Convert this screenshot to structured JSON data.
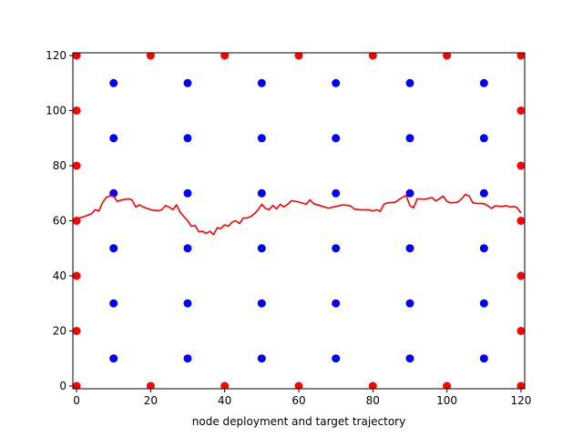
{
  "chart_data": {
    "type": "scatter",
    "title": "",
    "xlabel": "node deployment and target trajectory",
    "ylabel": "",
    "xlim": [
      -1,
      121
    ],
    "ylim": [
      -1,
      121
    ],
    "xticks": [
      0,
      20,
      40,
      60,
      80,
      100,
      120
    ],
    "yticks": [
      0,
      20,
      40,
      60,
      80,
      100,
      120
    ],
    "grid": false,
    "series": [
      {
        "kind": "scatter",
        "color": "#ff0000",
        "points": [
          [
            0,
            0
          ],
          [
            20,
            0
          ],
          [
            40,
            0
          ],
          [
            60,
            0
          ],
          [
            80,
            0
          ],
          [
            100,
            0
          ],
          [
            120,
            0
          ],
          [
            0,
            20
          ],
          [
            0,
            40
          ],
          [
            0,
            60
          ],
          [
            0,
            80
          ],
          [
            0,
            100
          ],
          [
            0,
            120
          ],
          [
            20,
            120
          ],
          [
            40,
            120
          ],
          [
            60,
            120
          ],
          [
            80,
            120
          ],
          [
            100,
            120
          ],
          [
            120,
            120
          ],
          [
            120,
            20
          ],
          [
            120,
            40
          ],
          [
            120,
            60
          ],
          [
            120,
            80
          ],
          [
            120,
            100
          ]
        ]
      },
      {
        "kind": "scatter",
        "color": "#0000ff",
        "points": [
          [
            10,
            10
          ],
          [
            30,
            10
          ],
          [
            50,
            10
          ],
          [
            70,
            10
          ],
          [
            90,
            10
          ],
          [
            110,
            10
          ],
          [
            10,
            30
          ],
          [
            30,
            30
          ],
          [
            50,
            30
          ],
          [
            70,
            30
          ],
          [
            90,
            30
          ],
          [
            110,
            30
          ],
          [
            10,
            50
          ],
          [
            30,
            50
          ],
          [
            50,
            50
          ],
          [
            70,
            50
          ],
          [
            90,
            50
          ],
          [
            110,
            50
          ],
          [
            10,
            70
          ],
          [
            30,
            70
          ],
          [
            50,
            70
          ],
          [
            70,
            70
          ],
          [
            90,
            70
          ],
          [
            110,
            70
          ],
          [
            10,
            90
          ],
          [
            30,
            90
          ],
          [
            50,
            90
          ],
          [
            70,
            90
          ],
          [
            90,
            90
          ],
          [
            110,
            90
          ],
          [
            10,
            110
          ],
          [
            30,
            110
          ],
          [
            50,
            110
          ],
          [
            70,
            110
          ],
          [
            90,
            110
          ],
          [
            110,
            110
          ]
        ]
      },
      {
        "kind": "line",
        "color": "#ff0000",
        "points": [
          [
            0,
            60.8
          ],
          [
            2,
            61.5
          ],
          [
            4,
            62.5
          ],
          [
            5,
            64
          ],
          [
            6,
            63.5
          ],
          [
            7,
            66.5
          ],
          [
            8,
            68.5
          ],
          [
            9,
            69
          ],
          [
            10,
            69
          ],
          [
            11,
            67
          ],
          [
            12,
            67.5
          ],
          [
            14,
            68
          ],
          [
            15,
            67.5
          ],
          [
            16,
            65
          ],
          [
            17,
            65.8
          ],
          [
            18,
            65
          ],
          [
            20,
            64
          ],
          [
            22,
            63.6
          ],
          [
            23,
            64
          ],
          [
            24,
            65.5
          ],
          [
            25,
            65
          ],
          [
            26,
            64
          ],
          [
            27,
            65.8
          ],
          [
            28,
            63
          ],
          [
            29,
            61.5
          ],
          [
            30,
            60
          ],
          [
            31,
            58
          ],
          [
            32,
            58.3
          ],
          [
            33,
            56
          ],
          [
            34,
            56.2
          ],
          [
            35,
            55.4
          ],
          [
            36,
            56.2
          ],
          [
            37,
            55
          ],
          [
            38,
            57.5
          ],
          [
            39,
            57.2
          ],
          [
            40,
            58.5
          ],
          [
            41,
            58
          ],
          [
            42,
            59.5
          ],
          [
            43,
            60
          ],
          [
            44,
            59
          ],
          [
            45,
            61
          ],
          [
            46,
            61
          ],
          [
            47,
            61.5
          ],
          [
            48,
            62.5
          ],
          [
            49,
            64
          ],
          [
            50,
            66
          ],
          [
            51,
            64.5
          ],
          [
            52,
            64
          ],
          [
            53,
            65.6
          ],
          [
            54,
            64.3
          ],
          [
            55,
            66
          ],
          [
            56,
            65
          ],
          [
            57,
            66
          ],
          [
            58,
            67.3
          ],
          [
            60,
            66.8
          ],
          [
            62,
            66
          ],
          [
            63,
            67.6
          ],
          [
            64,
            66.2
          ],
          [
            66,
            65.4
          ],
          [
            68,
            64.6
          ],
          [
            70,
            65.2
          ],
          [
            72,
            65.8
          ],
          [
            74,
            65.4
          ],
          [
            75,
            64.2
          ],
          [
            77,
            64
          ],
          [
            79,
            64
          ],
          [
            80,
            63.5
          ],
          [
            81,
            64
          ],
          [
            82,
            63.4
          ],
          [
            83,
            66
          ],
          [
            84,
            66.5
          ],
          [
            86,
            66.7
          ],
          [
            88,
            68.5
          ],
          [
            89,
            69.2
          ],
          [
            90,
            65.5
          ],
          [
            91,
            64.7
          ],
          [
            92,
            68
          ],
          [
            94,
            67.8
          ],
          [
            96,
            68.4
          ],
          [
            97,
            67.2
          ],
          [
            98,
            68
          ],
          [
            99,
            69
          ],
          [
            100,
            67
          ],
          [
            101,
            66.5
          ],
          [
            102,
            66.6
          ],
          [
            103,
            66.8
          ],
          [
            104,
            68
          ],
          [
            105,
            69.6
          ],
          [
            106,
            69
          ],
          [
            107,
            66.5
          ],
          [
            108,
            66.3
          ],
          [
            110,
            66.2
          ],
          [
            111,
            65.5
          ],
          [
            112,
            64.5
          ],
          [
            113,
            65.4
          ],
          [
            115,
            65.2
          ],
          [
            116,
            65.5
          ],
          [
            117,
            65
          ],
          [
            118,
            65.2
          ],
          [
            119,
            64.7
          ],
          [
            120,
            62.8
          ]
        ]
      }
    ]
  }
}
